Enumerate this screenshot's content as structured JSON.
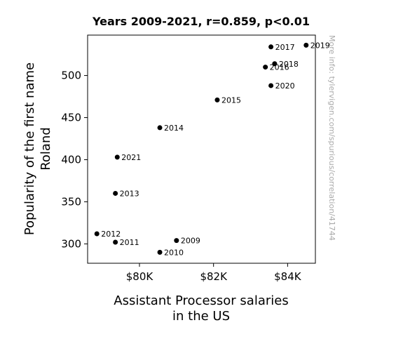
{
  "chart_data": {
    "type": "scatter",
    "title": "Years 2009-2021, r=0.859, p<0.01",
    "xlabel": [
      "Assistant Processor salaries",
      "in the US"
    ],
    "ylabel": [
      "Popularity of the first name",
      "Roland"
    ],
    "xlim": [
      78600,
      84750
    ],
    "ylim": [
      277,
      548
    ],
    "xticks": [
      {
        "value": 80000,
        "label": "$80K"
      },
      {
        "value": 82000,
        "label": "$82K"
      },
      {
        "value": 84000,
        "label": "$84K"
      }
    ],
    "yticks": [
      {
        "value": 300,
        "label": "300"
      },
      {
        "value": 350,
        "label": "350"
      },
      {
        "value": 400,
        "label": "400"
      },
      {
        "value": 450,
        "label": "450"
      },
      {
        "value": 500,
        "label": "500"
      }
    ],
    "points": [
      {
        "label": "2009",
        "x": 81000,
        "y": 304
      },
      {
        "label": "2010",
        "x": 80550,
        "y": 290
      },
      {
        "label": "2011",
        "x": 79350,
        "y": 302
      },
      {
        "label": "2012",
        "x": 78850,
        "y": 312
      },
      {
        "label": "2013",
        "x": 79350,
        "y": 360
      },
      {
        "label": "2014",
        "x": 80550,
        "y": 438
      },
      {
        "label": "2015",
        "x": 82100,
        "y": 471
      },
      {
        "label": "2016",
        "x": 83400,
        "y": 510
      },
      {
        "label": "2017",
        "x": 83550,
        "y": 534
      },
      {
        "label": "2018",
        "x": 83650,
        "y": 514
      },
      {
        "label": "2019",
        "x": 84500,
        "y": 536
      },
      {
        "label": "2020",
        "x": 83550,
        "y": 488
      },
      {
        "label": "2021",
        "x": 79400,
        "y": 403
      }
    ],
    "legend": "none",
    "grid": false,
    "marker_color": "#000000",
    "watermark": "More info: tylervigen.com/spurious/correlation/41744"
  }
}
